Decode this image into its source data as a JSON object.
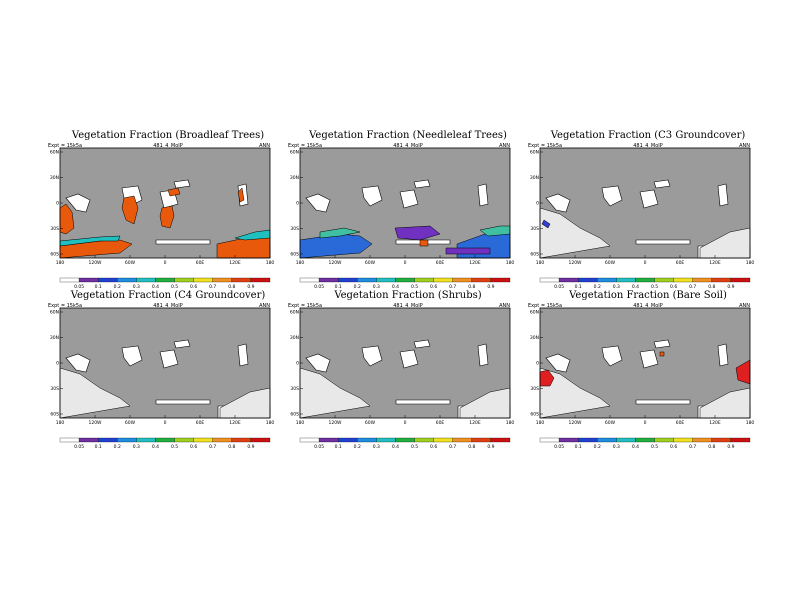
{
  "chart_data": [
    {
      "type": "heatmap",
      "title": "Vegetation Fraction (Broadleaf Trees)",
      "subtitle": "481_4_MoIP",
      "left_label": "Expt = 15k5a",
      "right_label": "ANN",
      "y_ticks": [
        "60N",
        "30N",
        "0",
        "30S",
        "60S"
      ],
      "x_ticks": [
        "180",
        "120W",
        "60W",
        "0",
        "60E",
        "120E",
        "180"
      ],
      "colorbar_ticks": [
        "0.05",
        "0.1",
        "0.2",
        "0.3",
        "0.4",
        "0.5",
        "0.6",
        "0.7",
        "0.8",
        "0.9"
      ],
      "colorbar_colors": [
        "#ffffff",
        "#7030a0",
        "#2040d0",
        "#1c8fe0",
        "#20c0c0",
        "#20b040",
        "#a0d020",
        "#f0e020",
        "#f09020",
        "#e04010",
        "#d01010"
      ],
      "land_patches": [
        {
          "fill": "#e8590c",
          "points": [
            [
              0,
              98
            ],
            [
              40,
              93
            ],
            [
              60,
              92
            ],
            [
              72,
              96
            ],
            [
              60,
              105
            ],
            [
              0,
              110
            ]
          ]
        },
        {
          "fill": "#20c0c0",
          "points": [
            [
              0,
              93
            ],
            [
              40,
              89
            ],
            [
              60,
              88
            ],
            [
              58,
              93
            ],
            [
              40,
              93
            ],
            [
              0,
              98
            ]
          ]
        },
        {
          "fill": "#e8590c",
          "points": [
            [
              157,
              96
            ],
            [
              185,
              90
            ],
            [
              210,
              88
            ],
            [
              210,
              110
            ],
            [
              157,
              110
            ]
          ]
        },
        {
          "fill": "#20c0c0",
          "points": [
            [
              175,
              90
            ],
            [
              195,
              84
            ],
            [
              210,
              82
            ],
            [
              210,
              90
            ],
            [
              185,
              92
            ]
          ]
        },
        {
          "fill": "#e8590c",
          "points": [
            [
              0,
              60
            ],
            [
              6,
              56
            ],
            [
              12,
              64
            ],
            [
              14,
              80
            ],
            [
              6,
              86
            ],
            [
              0,
              84
            ]
          ]
        },
        {
          "fill": "#e8590c",
          "points": [
            [
              64,
              50
            ],
            [
              74,
              48
            ],
            [
              78,
              60
            ],
            [
              74,
              76
            ],
            [
              66,
              72
            ],
            [
              62,
              60
            ]
          ]
        },
        {
          "fill": "#e8590c",
          "points": [
            [
              102,
              60
            ],
            [
              112,
              58
            ],
            [
              114,
              68
            ],
            [
              110,
              80
            ],
            [
              102,
              78
            ],
            [
              100,
              68
            ]
          ]
        },
        {
          "fill": "#e8590c",
          "points": [
            [
              108,
              42
            ],
            [
              118,
              40
            ],
            [
              120,
              46
            ],
            [
              110,
              48
            ]
          ]
        },
        {
          "fill": "#e8590c",
          "points": [
            [
              178,
              44
            ],
            [
              182,
              40
            ],
            [
              184,
              52
            ],
            [
              180,
              54
            ]
          ]
        }
      ],
      "ocean": "#9b9b9b"
    },
    {
      "type": "heatmap",
      "title": "Vegetation Fraction (Needleleaf Trees)",
      "subtitle": "481_4_MoIP",
      "left_label": "Expt = 15k5a",
      "right_label": "ANN",
      "y_ticks": [
        "60N",
        "30N",
        "0",
        "30S",
        "60S"
      ],
      "x_ticks": [
        "180",
        "120W",
        "60W",
        "0",
        "60E",
        "120E",
        "180"
      ],
      "colorbar_ticks": [
        "0.05",
        "0.1",
        "0.2",
        "0.3",
        "0.4",
        "0.5",
        "0.6",
        "0.7",
        "0.8",
        "0.9"
      ],
      "colorbar_colors": [
        "#ffffff",
        "#7030a0",
        "#2040d0",
        "#1c8fe0",
        "#20c0c0",
        "#20b040",
        "#a0d020",
        "#f0e020",
        "#f09020",
        "#e04010",
        "#d01010"
      ],
      "land_patches": [
        {
          "fill": "#2a6ad8",
          "points": [
            [
              0,
              92
            ],
            [
              40,
              86
            ],
            [
              60,
              88
            ],
            [
              72,
              96
            ],
            [
              60,
              105
            ],
            [
              0,
              110
            ]
          ]
        },
        {
          "fill": "#40c0a0",
          "points": [
            [
              20,
              84
            ],
            [
              44,
              80
            ],
            [
              60,
              84
            ],
            [
              40,
              88
            ],
            [
              20,
              90
            ]
          ]
        },
        {
          "fill": "#2a6ad8",
          "points": [
            [
              157,
              96
            ],
            [
              185,
              86
            ],
            [
              210,
              84
            ],
            [
              210,
              110
            ],
            [
              157,
              110
            ]
          ]
        },
        {
          "fill": "#40c0a0",
          "points": [
            [
              180,
              82
            ],
            [
              200,
              78
            ],
            [
              210,
              78
            ],
            [
              210,
              86
            ],
            [
              188,
              88
            ]
          ]
        },
        {
          "fill": "#7030c0",
          "points": [
            [
              95,
              80
            ],
            [
              130,
              78
            ],
            [
              140,
              86
            ],
            [
              120,
              92
            ],
            [
              98,
              90
            ]
          ]
        },
        {
          "fill": "#7030c0",
          "points": [
            [
              146,
              100
            ],
            [
              190,
              100
            ],
            [
              190,
              106
            ],
            [
              146,
              106
            ]
          ]
        },
        {
          "fill": "#e8590c",
          "points": [
            [
              120,
              92
            ],
            [
              128,
              92
            ],
            [
              128,
              98
            ],
            [
              120,
              98
            ]
          ]
        }
      ],
      "ocean": "#9b9b9b"
    },
    {
      "type": "heatmap",
      "title": "Vegetation Fraction (C3 Groundcover)",
      "subtitle": "481_4_MoIP",
      "left_label": "Expt = 15k5a",
      "right_label": "ANN",
      "y_ticks": [
        "60N",
        "30N",
        "0",
        "30S",
        "60S"
      ],
      "x_ticks": [
        "180",
        "120W",
        "60W",
        "0",
        "60E",
        "120E",
        "180"
      ],
      "colorbar_ticks": [
        "0.05",
        "0.1",
        "0.2",
        "0.3",
        "0.4",
        "0.5",
        "0.6",
        "0.7",
        "0.8",
        "0.9"
      ],
      "colorbar_colors": [
        "#ffffff",
        "#7030a0",
        "#2040d0",
        "#1c8fe0",
        "#20c0c0",
        "#20b040",
        "#a0d020",
        "#f0e020",
        "#f09020",
        "#e04010",
        "#d01010"
      ],
      "land_patches": [
        {
          "fill": "#e8e8e8",
          "points": [
            [
              0,
              60
            ],
            [
              20,
              66
            ],
            [
              40,
              80
            ],
            [
              60,
              90
            ],
            [
              70,
              98
            ],
            [
              0,
              110
            ]
          ]
        },
        {
          "fill": "#e8e8e8",
          "points": [
            [
              160,
              100
            ],
            [
              190,
              84
            ],
            [
              210,
              80
            ],
            [
              210,
              110
            ],
            [
              160,
              110
            ]
          ]
        },
        {
          "fill": "#3040d0",
          "points": [
            [
              4,
              72
            ],
            [
              10,
              76
            ],
            [
              8,
              80
            ],
            [
              2,
              76
            ]
          ]
        }
      ],
      "ocean": "#9b9b9b"
    },
    {
      "type": "heatmap",
      "title": "Vegetation Fraction (C4 Groundcover)",
      "subtitle": "481_4_MoIP",
      "left_label": "Expt = 15k5a",
      "right_label": "ANN",
      "y_ticks": [
        "60N",
        "30N",
        "0",
        "30S",
        "60S"
      ],
      "x_ticks": [
        "180",
        "120W",
        "60W",
        "0",
        "60E",
        "120E",
        "180"
      ],
      "colorbar_ticks": [
        "0.05",
        "0.1",
        "0.2",
        "0.3",
        "0.4",
        "0.5",
        "0.6",
        "0.7",
        "0.8",
        "0.9"
      ],
      "colorbar_colors": [
        "#ffffff",
        "#7030a0",
        "#2040d0",
        "#1c8fe0",
        "#20c0c0",
        "#20b040",
        "#a0d020",
        "#f0e020",
        "#f09020",
        "#e04010",
        "#d01010"
      ],
      "land_patches": [
        {
          "fill": "#e8e8e8",
          "points": [
            [
              0,
              60
            ],
            [
              20,
              66
            ],
            [
              40,
              80
            ],
            [
              60,
              90
            ],
            [
              70,
              98
            ],
            [
              0,
              110
            ]
          ]
        },
        {
          "fill": "#e8e8e8",
          "points": [
            [
              160,
              100
            ],
            [
              190,
              84
            ],
            [
              210,
              80
            ],
            [
              210,
              110
            ],
            [
              160,
              110
            ]
          ]
        }
      ],
      "ocean": "#9b9b9b"
    },
    {
      "type": "heatmap",
      "title": "Vegetation Fraction (Shrubs)",
      "subtitle": "481_4_MoIP",
      "left_label": "Expt = 15k5a",
      "right_label": "ANN",
      "y_ticks": [
        "60N",
        "30N",
        "0",
        "30S",
        "60S"
      ],
      "x_ticks": [
        "180",
        "120W",
        "60W",
        "0",
        "60E",
        "120E",
        "180"
      ],
      "colorbar_ticks": [
        "0.05",
        "0.1",
        "0.2",
        "0.3",
        "0.4",
        "0.5",
        "0.6",
        "0.7",
        "0.8",
        "0.9"
      ],
      "colorbar_colors": [
        "#ffffff",
        "#7030a0",
        "#2040d0",
        "#1c8fe0",
        "#20c0c0",
        "#20b040",
        "#a0d020",
        "#f0e020",
        "#f09020",
        "#e04010",
        "#d01010"
      ],
      "land_patches": [
        {
          "fill": "#e8e8e8",
          "points": [
            [
              0,
              60
            ],
            [
              20,
              66
            ],
            [
              40,
              80
            ],
            [
              60,
              90
            ],
            [
              70,
              98
            ],
            [
              0,
              110
            ]
          ]
        },
        {
          "fill": "#e8e8e8",
          "points": [
            [
              160,
              100
            ],
            [
              190,
              84
            ],
            [
              210,
              80
            ],
            [
              210,
              110
            ],
            [
              160,
              110
            ]
          ]
        }
      ],
      "ocean": "#9b9b9b"
    },
    {
      "type": "heatmap",
      "title": "Vegetation Fraction (Bare Soil)",
      "subtitle": "481_4_MoIP",
      "left_label": "Expt = 15k5a",
      "right_label": "ANN",
      "y_ticks": [
        "60N",
        "30N",
        "0",
        "30S",
        "60S"
      ],
      "x_ticks": [
        "180",
        "120W",
        "60W",
        "0",
        "60E",
        "120E",
        "180"
      ],
      "colorbar_ticks": [
        "0.05",
        "0.1",
        "0.2",
        "0.3",
        "0.4",
        "0.5",
        "0.6",
        "0.7",
        "0.8",
        "0.9"
      ],
      "colorbar_colors": [
        "#ffffff",
        "#7030a0",
        "#2040d0",
        "#1c8fe0",
        "#20c0c0",
        "#20b040",
        "#a0d020",
        "#f0e020",
        "#f09020",
        "#e04010",
        "#d01010"
      ],
      "land_patches": [
        {
          "fill": "#e8e8e8",
          "points": [
            [
              0,
              60
            ],
            [
              20,
              66
            ],
            [
              40,
              80
            ],
            [
              60,
              90
            ],
            [
              70,
              98
            ],
            [
              0,
              110
            ]
          ]
        },
        {
          "fill": "#e8e8e8",
          "points": [
            [
              160,
              100
            ],
            [
              190,
              84
            ],
            [
              210,
              80
            ],
            [
              210,
              110
            ],
            [
              160,
              110
            ]
          ]
        },
        {
          "fill": "#e02020",
          "points": [
            [
              0,
              64
            ],
            [
              8,
              62
            ],
            [
              14,
              70
            ],
            [
              10,
              78
            ],
            [
              0,
              78
            ]
          ]
        },
        {
          "fill": "#e02020",
          "points": [
            [
              196,
              60
            ],
            [
              210,
              52
            ],
            [
              210,
              76
            ],
            [
              198,
              72
            ]
          ]
        },
        {
          "fill": "#e8590c",
          "points": [
            [
              120,
              44
            ],
            [
              124,
              44
            ],
            [
              124,
              48
            ],
            [
              120,
              48
            ]
          ]
        }
      ],
      "ocean": "#9b9b9b"
    }
  ]
}
